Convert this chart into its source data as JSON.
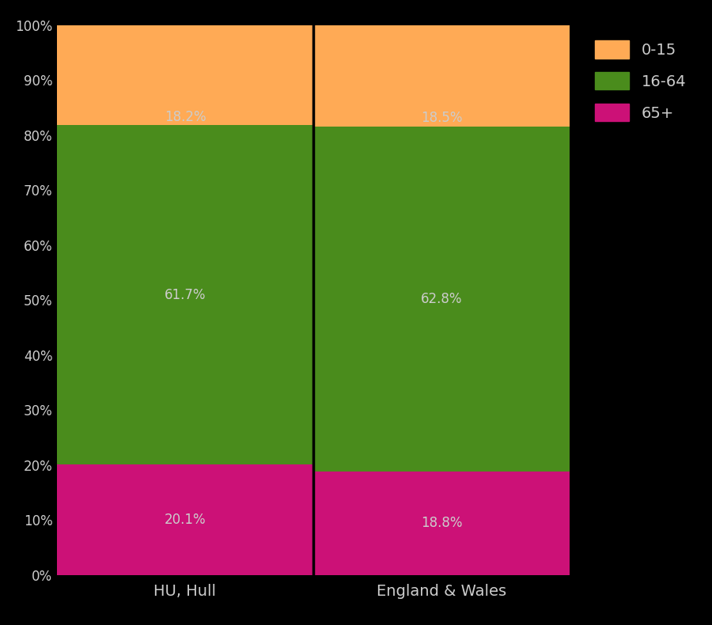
{
  "categories": [
    "HU, Hull",
    "England & Wales"
  ],
  "segments": [
    {
      "label": "65+",
      "color": "#CC1177",
      "values": [
        20.1,
        18.8
      ]
    },
    {
      "label": "16-64",
      "color": "#4A8C1C",
      "values": [
        61.7,
        62.8
      ]
    },
    {
      "label": "0-15",
      "color": "#FFAA55",
      "values": [
        18.2,
        18.5
      ]
    }
  ],
  "legend_order": [
    "0-15",
    "16-64",
    "65+"
  ],
  "legend_colors": [
    "#FFAA55",
    "#4A8C1C",
    "#CC1177"
  ],
  "ylim": [
    0,
    100
  ],
  "yticks": [
    0,
    10,
    20,
    30,
    40,
    50,
    60,
    70,
    80,
    90,
    100
  ],
  "ytick_labels": [
    "0%",
    "10%",
    "20%",
    "30%",
    "40%",
    "50%",
    "60%",
    "70%",
    "80%",
    "90%",
    "100%"
  ],
  "background_color": "#000000",
  "text_color": "#CCCCCC",
  "bar_width": 1.0,
  "figsize": [
    9.0,
    7.9
  ],
  "dpi": 100,
  "annotation_colors": {
    "65+": "#CCCCCC",
    "16-64": "#CCCCCC",
    "0-15": "#CCCCCC"
  }
}
